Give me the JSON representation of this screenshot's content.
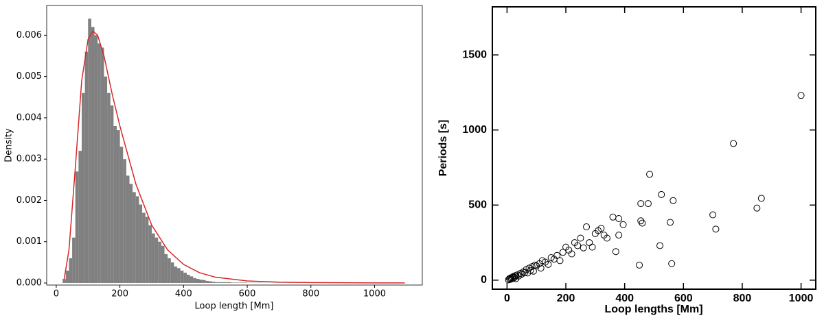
{
  "chart_data": [
    {
      "type": "histogram",
      "xlabel": "Loop length [Mm]",
      "ylabel": "Density",
      "bins": [
        20,
        30,
        40,
        50,
        60,
        70,
        80,
        90,
        100,
        110,
        120,
        130,
        140,
        150,
        160,
        170,
        180,
        190,
        200,
        210,
        220,
        230,
        240,
        250,
        260,
        270,
        280,
        290,
        300,
        310,
        320,
        330,
        340,
        350,
        360,
        370,
        380,
        390,
        400,
        410,
        420,
        430,
        440,
        450,
        460,
        470,
        480,
        490,
        500,
        550,
        600,
        650,
        700,
        800,
        900,
        1000,
        1100
      ],
      "values": [
        0.0001,
        0.0003,
        0.0006,
        0.0011,
        0.0027,
        0.0032,
        0.0046,
        0.0056,
        0.0064,
        0.0062,
        0.006,
        0.0058,
        0.0057,
        0.005,
        0.0046,
        0.0043,
        0.0038,
        0.0037,
        0.0033,
        0.003,
        0.0026,
        0.0024,
        0.0022,
        0.0021,
        0.0019,
        0.0017,
        0.0016,
        0.0014,
        0.0012,
        0.0011,
        0.001,
        0.0009,
        0.0007,
        0.0006,
        0.0005,
        0.0004,
        0.00036,
        0.0003,
        0.00025,
        0.0002,
        0.00016,
        0.00012,
        0.0001,
        8e-05,
        7e-05,
        5e-05,
        4e-05,
        3e-05,
        2e-05,
        1e-05,
        5e-06,
        3e-06,
        2e-06,
        1e-06,
        1e-06,
        1e-06
      ],
      "color": "#808080",
      "curve": {
        "x": [
          25,
          40,
          60,
          80,
          100,
          115,
          130,
          150,
          175,
          200,
          250,
          300,
          350,
          400,
          450,
          500,
          600,
          700,
          800,
          1000,
          1095
        ],
        "values": [
          0.0001,
          0.0008,
          0.0028,
          0.0049,
          0.0059,
          0.0061,
          0.006,
          0.0055,
          0.0046,
          0.0038,
          0.0024,
          0.0014,
          0.0008,
          0.00045,
          0.00025,
          0.00014,
          5e-05,
          2e-05,
          1e-05,
          2e-06,
          1e-06
        ],
        "color": "#d62728"
      },
      "xlim": [
        -30,
        1150
      ],
      "ylim": [
        -5e-05,
        0.00672
      ],
      "xticks": [
        0,
        200,
        400,
        600,
        800,
        1000
      ],
      "yticks": [
        {
          "value": 0,
          "label": "0.000"
        },
        {
          "value": 0.001,
          "label": "0.001"
        },
        {
          "value": 0.002,
          "label": "0.002"
        },
        {
          "value": 0.003,
          "label": "0.003"
        },
        {
          "value": 0.004,
          "label": "0.004"
        },
        {
          "value": 0.005,
          "label": "0.005"
        },
        {
          "value": 0.006,
          "label": "0.006"
        }
      ]
    },
    {
      "type": "scatter",
      "xlabel": "Loop lengths [Mm]",
      "ylabel": "Periods [s]",
      "x": [
        5,
        8,
        10,
        12,
        15,
        18,
        20,
        22,
        25,
        28,
        30,
        35,
        40,
        45,
        50,
        55,
        60,
        65,
        70,
        75,
        80,
        85,
        90,
        95,
        100,
        110,
        115,
        120,
        130,
        140,
        150,
        160,
        170,
        180,
        190,
        210,
        220,
        240,
        260,
        280,
        290,
        330,
        340,
        1000,
        770,
        485,
        565,
        525,
        455,
        480,
        455,
        460,
        450,
        520,
        555,
        560,
        700,
        710,
        850,
        865,
        360,
        380,
        395,
        380,
        370,
        320,
        300,
        310,
        270,
        250,
        230,
        200
      ],
      "values": [
        2,
        10,
        5,
        15,
        8,
        20,
        12,
        25,
        18,
        30,
        10,
        35,
        28,
        45,
        40,
        55,
        50,
        70,
        48,
        80,
        65,
        90,
        60,
        100,
        95,
        110,
        80,
        130,
        120,
        105,
        150,
        140,
        165,
        130,
        185,
        200,
        175,
        230,
        215,
        250,
        220,
        300,
        280,
        1230,
        910,
        705,
        530,
        570,
        510,
        510,
        395,
        380,
        100,
        230,
        385,
        110,
        435,
        340,
        480,
        545,
        420,
        410,
        370,
        300,
        190,
        345,
        310,
        330,
        355,
        280,
        250,
        220
      ],
      "color": "#000000",
      "xlim": [
        -50,
        1050
      ],
      "ylim": [
        -60,
        1820
      ],
      "xticks": [
        0,
        200,
        400,
        600,
        800,
        1000
      ],
      "yticks": [
        0,
        500,
        1000,
        1500
      ]
    }
  ]
}
